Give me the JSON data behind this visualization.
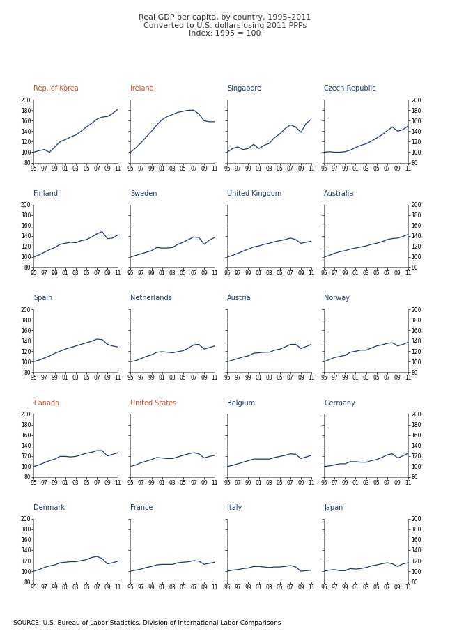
{
  "title": "Real GDP per capita, by country, 1995–2011\nConverted to U.S. dollars using 2011 PPPs\nIndex: 1995 = 100",
  "source": "SOURCE: U.S. Bureau of Labor Statistics, Division of International Labor Comparisons",
  "years": [
    1995,
    1996,
    1997,
    1998,
    1999,
    2000,
    2001,
    2002,
    2003,
    2004,
    2005,
    2006,
    2007,
    2008,
    2009,
    2010,
    2011
  ],
  "xtick_labels": [
    "95",
    "97",
    "99",
    "01",
    "03",
    "05",
    "07",
    "09",
    "11"
  ],
  "xtick_positions": [
    1995,
    1997,
    1999,
    2001,
    2003,
    2005,
    2007,
    2009,
    2011
  ],
  "countries": [
    "Rep. of Korea",
    "Ireland",
    "Singapore",
    "Czech Republic",
    "Finland",
    "Sweden",
    "United Kingdom",
    "Australia",
    "Spain",
    "Netherlands",
    "Austria",
    "Norway",
    "Canada",
    "United States",
    "Belgium",
    "Germany",
    "Denmark",
    "France",
    "Italy",
    "Japan"
  ],
  "label_colors": {
    "Rep. of Korea": "#c8572a",
    "Ireland": "#c8572a",
    "Singapore": "#1a3a6e",
    "Czech Republic": "#1a3a6e",
    "Finland": "#1a3a6e",
    "Sweden": "#1a3a6e",
    "United Kingdom": "#1a3a6e",
    "Australia": "#1a3a6e",
    "Spain": "#1a3a6e",
    "Netherlands": "#1a3a6e",
    "Austria": "#1a3a6e",
    "Norway": "#1a3a6e",
    "Canada": "#c8572a",
    "United States": "#c8572a",
    "Belgium": "#1a3a6e",
    "Germany": "#1a3a6e",
    "Denmark": "#1a3a6e",
    "France": "#1a3a6e",
    "Italy": "#1a3a6e",
    "Japan": "#1a3a6e"
  },
  "data": {
    "Rep. of Korea": [
      100,
      103,
      105,
      100,
      110,
      120,
      124,
      129,
      133,
      140,
      148,
      155,
      163,
      167,
      168,
      174,
      182
    ],
    "Ireland": [
      100,
      108,
      118,
      129,
      140,
      152,
      162,
      168,
      172,
      176,
      178,
      180,
      180,
      173,
      160,
      158,
      158
    ],
    "Singapore": [
      100,
      107,
      110,
      105,
      107,
      115,
      107,
      113,
      117,
      128,
      135,
      145,
      152,
      148,
      138,
      155,
      163
    ],
    "Czech Republic": [
      100,
      101,
      100,
      100,
      101,
      104,
      109,
      113,
      116,
      121,
      127,
      133,
      141,
      148,
      140,
      143,
      150
    ],
    "Finland": [
      100,
      104,
      109,
      114,
      118,
      124,
      126,
      128,
      127,
      131,
      133,
      138,
      144,
      148,
      135,
      136,
      142
    ],
    "Sweden": [
      100,
      103,
      106,
      109,
      112,
      118,
      117,
      117,
      118,
      124,
      128,
      133,
      138,
      137,
      124,
      132,
      137
    ],
    "United Kingdom": [
      100,
      103,
      107,
      111,
      115,
      119,
      121,
      124,
      126,
      129,
      131,
      133,
      136,
      133,
      126,
      128,
      130
    ],
    "Australia": [
      100,
      103,
      107,
      110,
      112,
      115,
      117,
      119,
      121,
      124,
      126,
      129,
      133,
      135,
      136,
      139,
      143
    ],
    "Spain": [
      100,
      103,
      107,
      111,
      116,
      120,
      124,
      127,
      130,
      133,
      136,
      139,
      143,
      142,
      133,
      130,
      128
    ],
    "Netherlands": [
      100,
      102,
      106,
      110,
      113,
      118,
      119,
      118,
      117,
      119,
      121,
      126,
      132,
      133,
      124,
      127,
      130
    ],
    "Austria": [
      100,
      103,
      106,
      109,
      111,
      116,
      117,
      118,
      118,
      122,
      124,
      128,
      133,
      133,
      125,
      129,
      133
    ],
    "Norway": [
      100,
      104,
      108,
      110,
      112,
      118,
      120,
      122,
      122,
      126,
      130,
      132,
      135,
      136,
      130,
      133,
      137
    ],
    "Canada": [
      100,
      103,
      107,
      111,
      114,
      119,
      119,
      118,
      119,
      122,
      125,
      127,
      130,
      130,
      120,
      123,
      126
    ],
    "United States": [
      100,
      103,
      107,
      110,
      113,
      117,
      116,
      115,
      115,
      118,
      121,
      124,
      126,
      124,
      116,
      119,
      121
    ],
    "Belgium": [
      100,
      102,
      105,
      108,
      111,
      114,
      114,
      114,
      114,
      117,
      119,
      121,
      124,
      123,
      115,
      118,
      121
    ],
    "Germany": [
      100,
      101,
      103,
      105,
      105,
      109,
      109,
      108,
      108,
      111,
      113,
      117,
      122,
      124,
      116,
      120,
      125
    ],
    "Denmark": [
      100,
      103,
      107,
      110,
      112,
      116,
      117,
      118,
      118,
      120,
      122,
      126,
      128,
      124,
      114,
      116,
      119
    ],
    "France": [
      100,
      102,
      104,
      107,
      109,
      112,
      113,
      113,
      113,
      116,
      117,
      118,
      120,
      119,
      113,
      115,
      117
    ],
    "Italy": [
      100,
      102,
      103,
      105,
      106,
      109,
      109,
      108,
      107,
      108,
      108,
      109,
      111,
      108,
      100,
      101,
      102
    ],
    "Japan": [
      100,
      102,
      103,
      101,
      101,
      105,
      104,
      105,
      107,
      110,
      112,
      114,
      116,
      114,
      109,
      114,
      116
    ]
  },
  "ylim": [
    80,
    200
  ],
  "yticks": [
    80,
    100,
    120,
    140,
    160,
    180,
    200
  ],
  "line_color": "#1a3a6e",
  "title_color": "#333333",
  "bg_color": "white",
  "subplot_rows": 5,
  "subplot_cols": 4
}
